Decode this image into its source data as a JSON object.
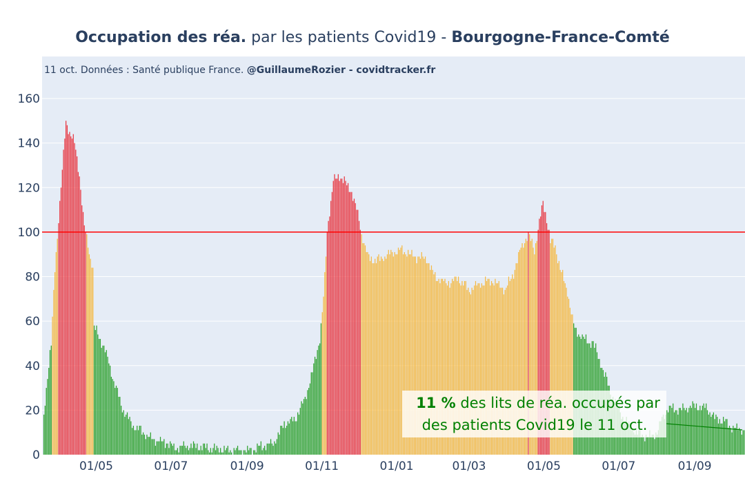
{
  "title": {
    "part1": "Occupation des réa.",
    "part2": " par les patients Covid19 - ",
    "part3": "Bourgogne-France-Comté"
  },
  "subtitle": {
    "plain": "11 oct. Données : Santé publique France. ",
    "bold": "@GuillaumeRozier - covidtracker.fr"
  },
  "annotation": {
    "value": "11",
    "unit": " %",
    "line1_rest": " des lits de réa. occupés par",
    "line2": "des patients Covid19 le 11 oct.",
    "color": "#008000"
  },
  "colors": {
    "plot_bg": "#e5ecf6",
    "grid": "#ffffff",
    "threshold": "#ff0000",
    "green": "#2ca02c",
    "orange": "#f5b942",
    "red": "#e8353f"
  },
  "chart_data": {
    "type": "bar",
    "x_start": "2020-03-19",
    "x_end": "2021-10-11",
    "x_tick_labels": [
      "01/05",
      "01/07",
      "01/09",
      "01/11",
      "01/01",
      "01/03",
      "01/05",
      "01/07",
      "01/09"
    ],
    "x_tick_dates": [
      "2020-05-01",
      "2020-07-01",
      "2020-09-01",
      "2020-11-01",
      "2021-01-01",
      "2021-03-01",
      "2021-05-01",
      "2021-07-01",
      "2021-09-01"
    ],
    "y_ticks": [
      0,
      20,
      40,
      60,
      80,
      100,
      120,
      140,
      160
    ],
    "ylim": [
      0,
      160
    ],
    "threshold": 100,
    "color_rule": "green <= 60%, orange 60-100%, red >= 100%",
    "series_keypoints": [
      [
        "2020-03-19",
        17
      ],
      [
        "2020-03-22",
        36
      ],
      [
        "2020-03-25",
        50
      ],
      [
        "2020-03-28",
        83
      ],
      [
        "2020-03-31",
        106
      ],
      [
        "2020-04-03",
        128
      ],
      [
        "2020-04-06",
        149
      ],
      [
        "2020-04-10",
        144
      ],
      [
        "2020-04-13",
        140
      ],
      [
        "2020-04-17",
        125
      ],
      [
        "2020-04-21",
        102
      ],
      [
        "2020-04-25",
        91
      ],
      [
        "2020-04-28",
        84
      ],
      [
        "2020-04-29",
        57
      ],
      [
        "2020-05-04",
        52
      ],
      [
        "2020-05-08",
        47
      ],
      [
        "2020-05-15",
        33
      ],
      [
        "2020-05-22",
        21
      ],
      [
        "2020-05-29",
        14
      ],
      [
        "2020-06-08",
        10
      ],
      [
        "2020-06-15",
        7
      ],
      [
        "2020-06-29",
        5
      ],
      [
        "2020-07-03",
        3
      ],
      [
        "2020-07-15",
        4
      ],
      [
        "2020-08-01",
        3
      ],
      [
        "2020-08-15",
        2
      ],
      [
        "2020-09-01",
        2
      ],
      [
        "2020-09-15",
        4
      ],
      [
        "2020-09-22",
        5
      ],
      [
        "2020-10-01",
        14
      ],
      [
        "2020-10-10",
        16
      ],
      [
        "2020-10-18",
        25
      ],
      [
        "2020-10-24",
        37
      ],
      [
        "2020-10-30",
        52
      ],
      [
        "2020-11-02",
        70
      ],
      [
        "2020-11-05",
        100
      ],
      [
        "2020-11-10",
        123
      ],
      [
        "2020-11-15",
        125
      ],
      [
        "2020-11-20",
        122
      ],
      [
        "2020-11-25",
        118
      ],
      [
        "2020-11-30",
        108
      ],
      [
        "2020-12-03",
        99
      ],
      [
        "2020-12-08",
        89
      ],
      [
        "2020-12-15",
        87
      ],
      [
        "2020-12-25",
        90
      ],
      [
        "2021-01-05",
        92
      ],
      [
        "2021-01-15",
        89
      ],
      [
        "2021-01-25",
        88
      ],
      [
        "2021-02-01",
        80
      ],
      [
        "2021-02-10",
        77
      ],
      [
        "2021-02-20",
        79
      ],
      [
        "2021-03-01",
        74
      ],
      [
        "2021-03-10",
        77
      ],
      [
        "2021-03-20",
        78
      ],
      [
        "2021-03-30",
        74
      ],
      [
        "2021-04-05",
        80
      ],
      [
        "2021-04-12",
        93
      ],
      [
        "2021-04-18",
        99
      ],
      [
        "2021-04-23",
        92
      ],
      [
        "2021-04-27",
        104
      ],
      [
        "2021-04-30",
        113
      ],
      [
        "2021-05-03",
        106
      ],
      [
        "2021-05-06",
        96
      ],
      [
        "2021-05-10",
        93
      ],
      [
        "2021-05-14",
        84
      ],
      [
        "2021-05-20",
        73
      ],
      [
        "2021-05-24",
        61
      ],
      [
        "2021-05-26",
        56
      ],
      [
        "2021-06-05",
        51
      ],
      [
        "2021-06-10",
        50
      ],
      [
        "2021-06-18",
        38
      ],
      [
        "2021-06-25",
        27
      ],
      [
        "2021-07-05",
        16
      ],
      [
        "2021-07-15",
        10
      ],
      [
        "2021-07-25",
        8
      ],
      [
        "2021-08-01",
        10
      ],
      [
        "2021-08-05",
        16
      ],
      [
        "2021-08-10",
        21
      ],
      [
        "2021-08-20",
        20
      ],
      [
        "2021-08-30",
        22
      ],
      [
        "2021-09-10",
        21
      ],
      [
        "2021-09-18",
        16
      ],
      [
        "2021-09-25",
        15
      ],
      [
        "2021-10-01",
        12
      ],
      [
        "2021-10-11",
        11
      ]
    ]
  }
}
